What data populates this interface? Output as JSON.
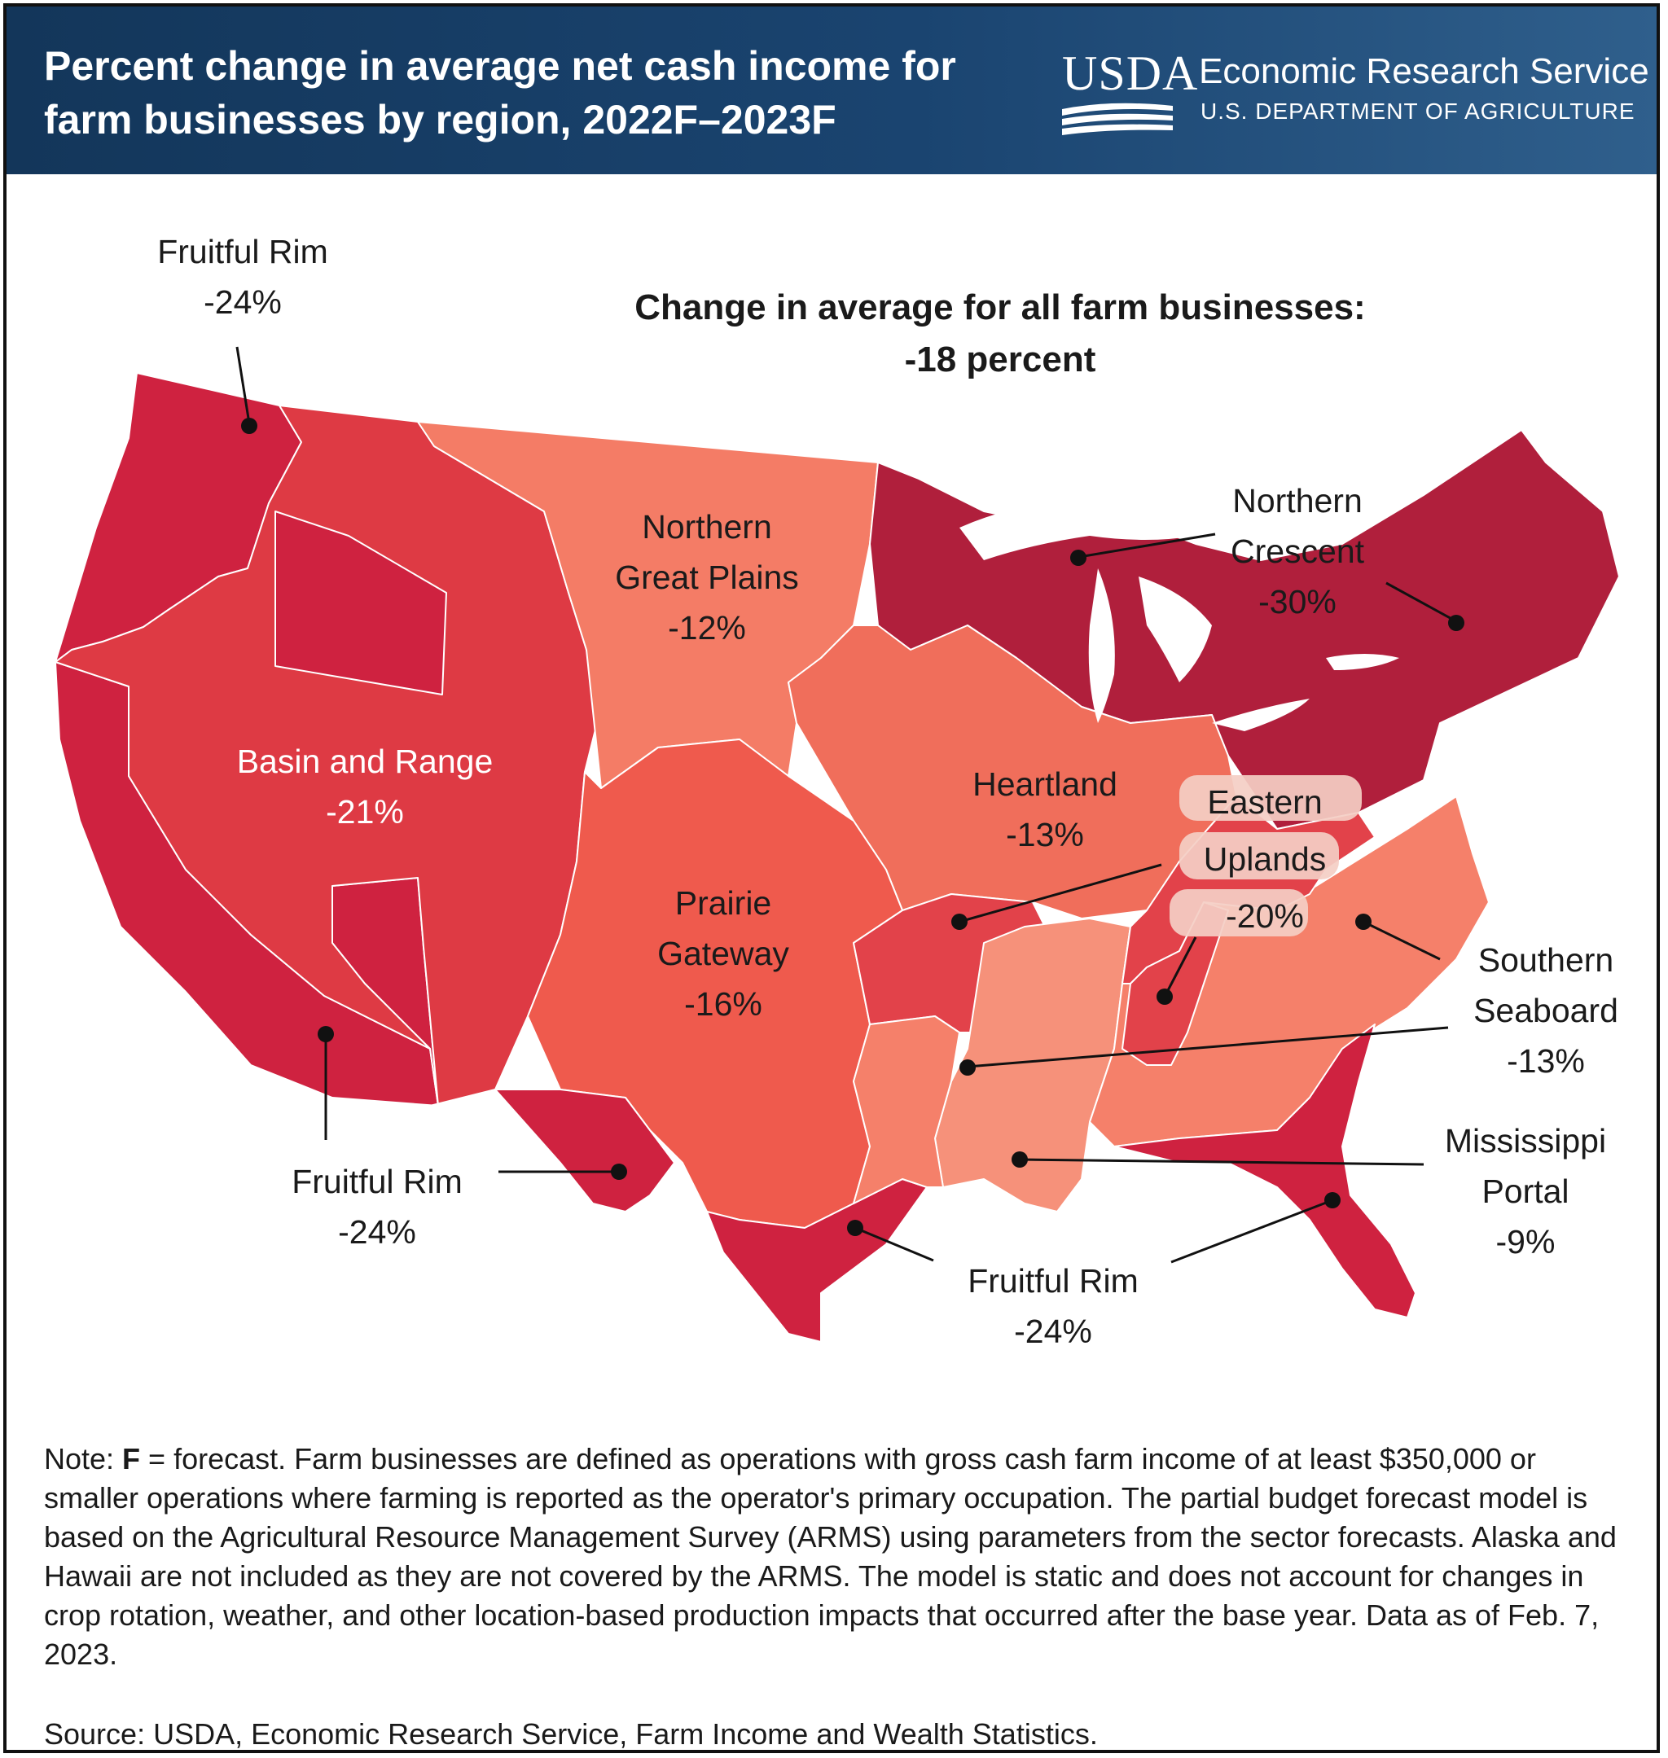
{
  "title": "Percent change in average net cash income for farm businesses by region, 2022F–2023F",
  "logo": {
    "usda": "USDA",
    "agency": "Economic Research Service",
    "department": "U.S. DEPARTMENT OF AGRICULTURE"
  },
  "average": {
    "line1": "Change in average for all farm businesses:",
    "line2": "-18 percent"
  },
  "colors": {
    "fruitful_rim": "#cf2240",
    "basin_range": "#de3a44",
    "northern_crescent": "#b01f3c",
    "prairie_gateway": "#ef5a4d",
    "heartland": "#f06e5b",
    "northern_great_plains": "#f47c66",
    "southern_seaboard": "#f5806a",
    "eastern_uplands": "#e2424a",
    "mississippi_portal": "#f6917a",
    "header": "#1a4470"
  },
  "regions": [
    {
      "name": "Fruitful Rim",
      "value": "-24%",
      "percent": -24
    },
    {
      "name": "Basin and Range",
      "value": "-21%",
      "percent": -21
    },
    {
      "name": "Northern Great Plains",
      "value": "-12%",
      "percent": -12
    },
    {
      "name": "Northern Crescent",
      "value": "-30%",
      "percent": -30
    },
    {
      "name": "Heartland",
      "value": "-13%",
      "percent": -13
    },
    {
      "name": "Prairie Gateway",
      "value": "-16%",
      "percent": -16
    },
    {
      "name": "Eastern Uplands",
      "value": "-20%",
      "percent": -20
    },
    {
      "name": "Southern Seaboard",
      "value": "-13%",
      "percent": -13
    },
    {
      "name": "Mississippi Portal",
      "value": "-9%",
      "percent": -9
    }
  ],
  "labels": {
    "fruitful_nw": {
      "line1": "Fruitful Rim",
      "line2": "-24%"
    },
    "fruitful_sw": {
      "line1": "Fruitful Rim",
      "line2": "-24%"
    },
    "fruitful_se": {
      "line1": "Fruitful Rim",
      "line2": "-24%"
    },
    "basin": {
      "line1": "Basin and Range",
      "line2": "-21%"
    },
    "ngp": {
      "line1": "Northern",
      "line2": "Great Plains",
      "line3": "-12%"
    },
    "ncres": {
      "line1": "Northern",
      "line2": "Crescent",
      "line3": "-30%"
    },
    "heart": {
      "line1": "Heartland",
      "line2": "-13%"
    },
    "prairie": {
      "line1": "Prairie",
      "line2": "Gateway",
      "line3": "-16%"
    },
    "eastern": {
      "line1": "Eastern",
      "line2": "Uplands",
      "line3": "-20%"
    },
    "south": {
      "line1": "Southern",
      "line2": "Seaboard",
      "line3": "-13%"
    },
    "miss": {
      "line1": "Mississippi",
      "line2": "Portal",
      "line3": "-9%"
    }
  },
  "note": {
    "prefix": "Note: ",
    "bold": "F",
    "text": " = forecast. Farm businesses are defined as operations with gross cash farm income of at least $350,000 or smaller operations where farming is reported as the operator's primary occupation. The partial budget forecast model is based on the Agricultural Resource Management Survey (ARMS) using parameters from the sector forecasts. Alaska and Hawaii are not included as they are not covered by the ARMS. The model is static and does not account for changes in crop rotation, weather, and other location-based production impacts that occurred after the base year. Data as of Feb. 7, 2023."
  },
  "source": "Source: USDA, Economic Research Service, Farm Income and Wealth Statistics."
}
